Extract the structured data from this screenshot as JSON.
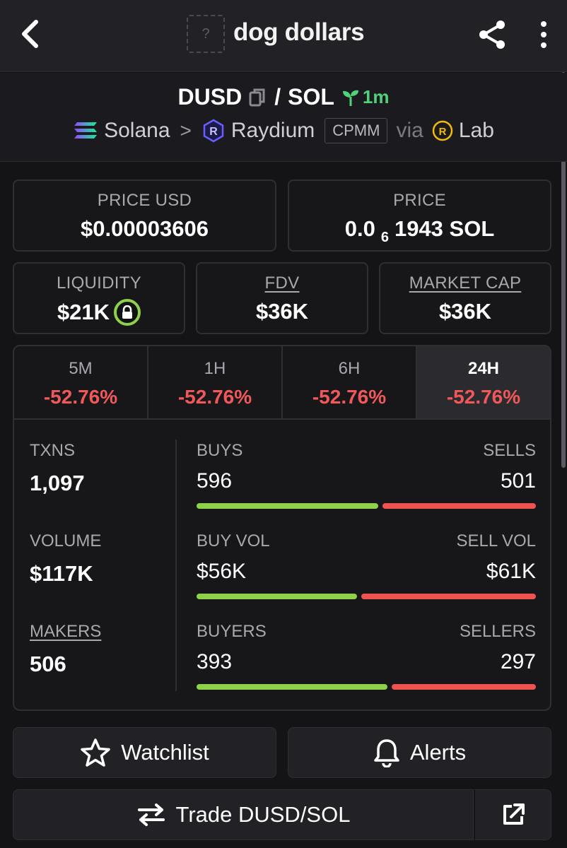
{
  "header": {
    "title": "dog dollars",
    "token_placeholder": "?"
  },
  "pair": {
    "base": "DUSD",
    "slash": "/",
    "quote": "SOL",
    "age": "1m",
    "chain": "Solana",
    "dex": "Raydium",
    "pool_type": "CPMM",
    "via": "via",
    "via_source": "Lab"
  },
  "stats": {
    "price_usd_label": "PRICE USD",
    "price_usd": "$0.00003606",
    "price_label": "PRICE",
    "price_native_prefix": "0.0",
    "price_native_zeros": "6",
    "price_native_digits": "1943 SOL",
    "liquidity_label": "LIQUIDITY",
    "liquidity": "$21K",
    "fdv_label": "FDV",
    "fdv": "$36K",
    "mcap_label": "MARKET CAP",
    "mcap": "$36K"
  },
  "tabs": [
    {
      "label": "5M",
      "change": "-52.76%"
    },
    {
      "label": "1H",
      "change": "-52.76%"
    },
    {
      "label": "6H",
      "change": "-52.76%"
    },
    {
      "label": "24H",
      "change": "-52.76%"
    }
  ],
  "active_tab": "24H",
  "txn_stats": {
    "txns_label": "TXNS",
    "txns": "1,097",
    "volume_label": "VOLUME",
    "volume": "$117K",
    "makers_label": "MAKERS",
    "makers": "506",
    "buys_label": "BUYS",
    "buys": "596",
    "sells_label": "SELLS",
    "sells": "501",
    "buy_vol_label": "BUY VOL",
    "buy_vol": "$56K",
    "sell_vol_label": "SELL VOL",
    "sell_vol": "$61K",
    "buyers_label": "BUYERS",
    "buyers": "393",
    "sellers_label": "SELLERS",
    "sellers": "297",
    "buys_ratio": 0.543,
    "buy_vol_ratio": 0.479,
    "buyers_ratio": 0.57
  },
  "actions": {
    "watchlist": "Watchlist",
    "alerts": "Alerts",
    "trade": "Trade DUSD/SOL"
  },
  "colors": {
    "positive": "#8fd14a",
    "negative": "#ef5350",
    "age_green": "#4fd27a"
  }
}
